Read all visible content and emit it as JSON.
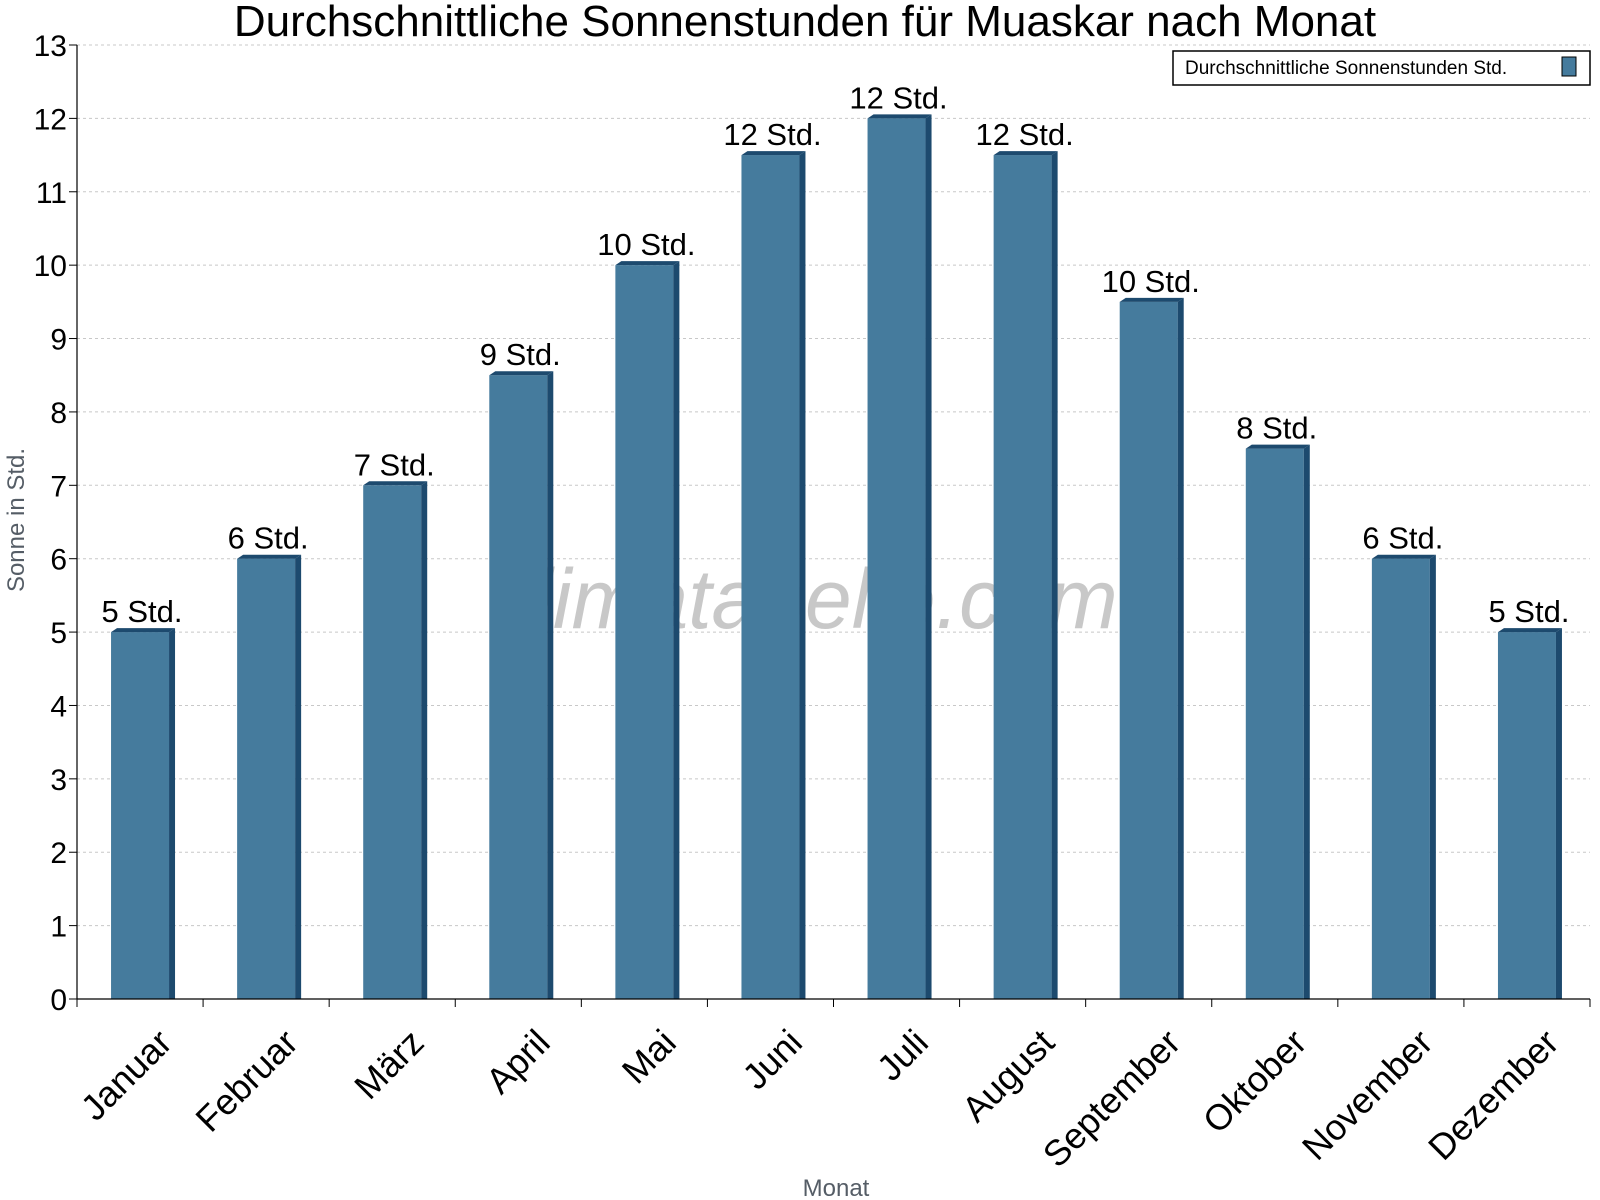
{
  "chart_data": {
    "type": "bar",
    "title": "Durchschnittliche Sonnenstunden für Muaskar nach Monat",
    "xlabel": "Monat",
    "ylabel": "Sonne in Std.",
    "categories": [
      "Januar",
      "Februar",
      "März",
      "April",
      "Mai",
      "Juni",
      "Juli",
      "August",
      "September",
      "Oktober",
      "November",
      "Dezember"
    ],
    "series": [
      {
        "name": "Durchschnittliche Sonnenstunden Std.",
        "values": [
          5,
          6,
          7,
          8.5,
          10,
          11.5,
          12,
          11.5,
          9.5,
          7.5,
          6,
          5
        ],
        "labels": [
          "5 Std.",
          "6 Std.",
          "7 Std.",
          "9 Std.",
          "10 Std.",
          "12 Std.",
          "12 Std.",
          "12 Std.",
          "10 Std.",
          "8 Std.",
          "6 Std.",
          "5 Std."
        ]
      }
    ],
    "ylim": [
      0,
      13
    ],
    "yticks": [
      "0",
      "1",
      "2",
      "3",
      "4",
      "5",
      "6",
      "7",
      "8",
      "9",
      "10",
      "11",
      "12",
      "13"
    ],
    "grid": true,
    "legend_position": "top-right",
    "watermark": "klimatabelle.com",
    "colors": {
      "bar": "#457b9d",
      "bar_side": "#1d4a6e",
      "bar_top": "#1d4a6e",
      "grid": "#c8c8c8"
    }
  }
}
